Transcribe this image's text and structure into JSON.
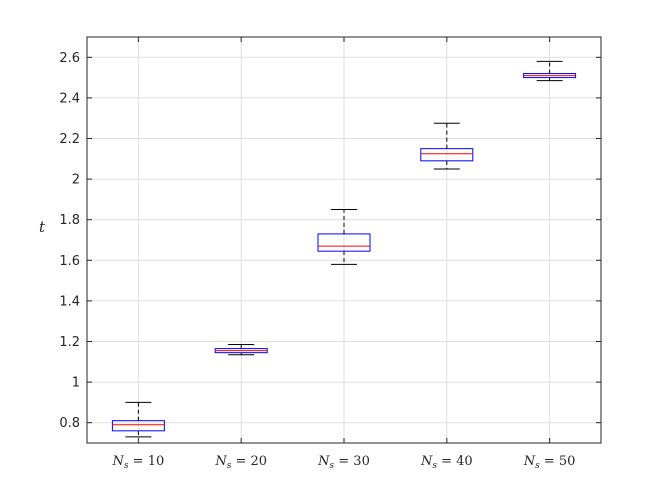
{
  "chart_data": {
    "type": "box",
    "ylabel": "t",
    "xlabel": "",
    "ylim": [
      0.7,
      2.7
    ],
    "yticks": [
      "0.8",
      "1",
      "1.2",
      "1.4",
      "1.6",
      "1.8",
      "2",
      "2.2",
      "2.4",
      "2.6"
    ],
    "ytick_values": [
      0.8,
      1.0,
      1.2,
      1.4,
      1.6,
      1.8,
      2.0,
      2.2,
      2.4,
      2.6
    ],
    "grid": true,
    "categories": [
      {
        "prefix": "N",
        "sub": "s",
        "rest": " = 10"
      },
      {
        "prefix": "N",
        "sub": "s",
        "rest": " = 20"
      },
      {
        "prefix": "N",
        "sub": "s",
        "rest": " = 30"
      },
      {
        "prefix": "N",
        "sub": "s",
        "rest": " = 40"
      },
      {
        "prefix": "N",
        "sub": "s",
        "rest": " = 50"
      }
    ],
    "boxes": [
      {
        "whisker_low": 0.73,
        "q1": 0.76,
        "median": 0.79,
        "q3": 0.81,
        "whisker_high": 0.9
      },
      {
        "whisker_low": 1.135,
        "q1": 1.145,
        "median": 1.155,
        "q3": 1.165,
        "whisker_high": 1.185
      },
      {
        "whisker_low": 1.58,
        "q1": 1.645,
        "median": 1.67,
        "q3": 1.73,
        "whisker_high": 1.85
      },
      {
        "whisker_low": 2.05,
        "q1": 2.09,
        "median": 2.125,
        "q3": 2.15,
        "whisker_high": 2.275
      },
      {
        "whisker_low": 2.485,
        "q1": 2.5,
        "median": 2.51,
        "q3": 2.52,
        "whisker_high": 2.58
      }
    ],
    "colors": {
      "box": "#0000ff",
      "median": "#ff0000",
      "whisker": "#000000",
      "grid": "#dfdfdf",
      "axis": "#262626"
    }
  }
}
